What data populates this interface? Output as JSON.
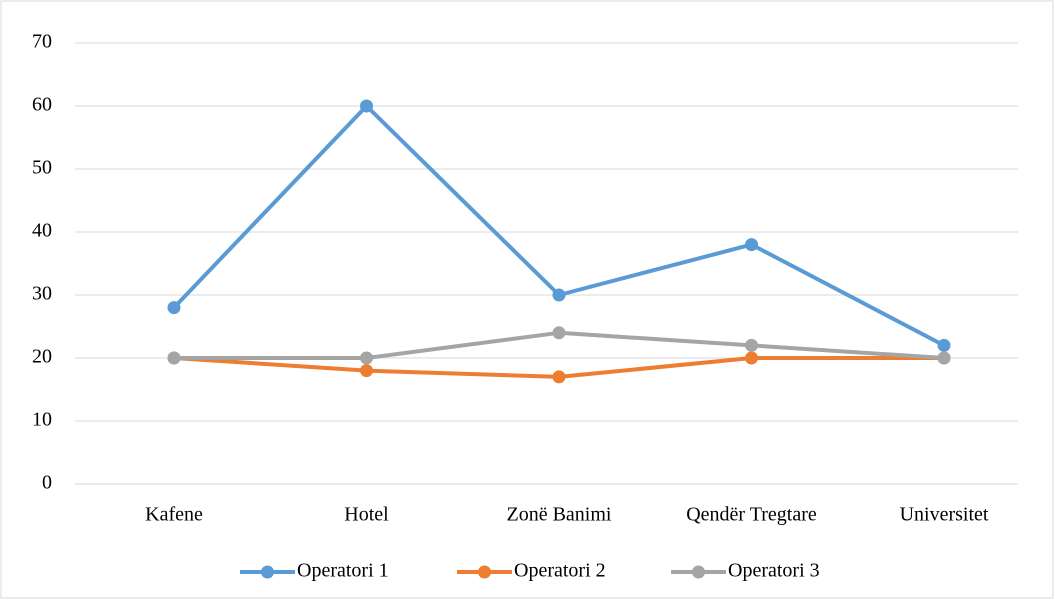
{
  "chart_data": {
    "type": "line",
    "categories": [
      "Kafene",
      "Hotel",
      "Zonë Banimi",
      "Qendër Tregtare",
      "Universitet"
    ],
    "series": [
      {
        "name": "Operatori 1",
        "color": "#5b9bd5",
        "values": [
          28,
          60,
          30,
          38,
          22
        ]
      },
      {
        "name": "Operatori 2",
        "color": "#ed7d31",
        "values": [
          20,
          18,
          17,
          20,
          20
        ]
      },
      {
        "name": "Operatori 3",
        "color": "#a5a5a5",
        "values": [
          20,
          20,
          24,
          22,
          20
        ]
      }
    ],
    "ylim": [
      0,
      70
    ],
    "yticks": [
      0,
      10,
      20,
      30,
      40,
      50,
      60,
      70
    ],
    "grid": true,
    "legend": "bottom"
  }
}
